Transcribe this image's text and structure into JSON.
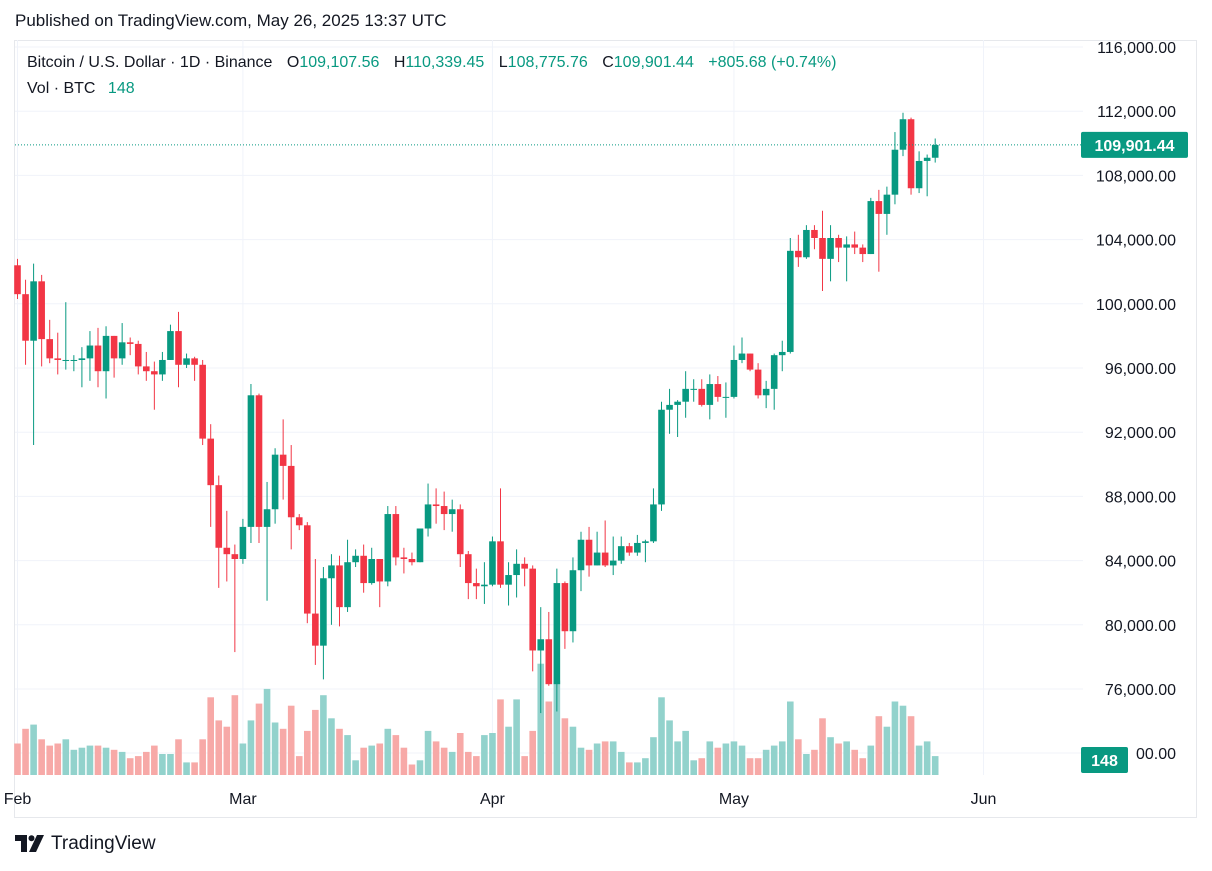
{
  "header": {
    "published": "Published on TradingView.com, May 26, 2025 13:37 UTC"
  },
  "legend": {
    "symbol": "Bitcoin / U.S. Dollar · 1D · Binance",
    "o_label": "O",
    "o_value": "109,107.56",
    "h_label": "H",
    "h_value": "110,339.45",
    "l_label": "L",
    "l_value": "108,775.76",
    "c_label": "C",
    "c_value": "109,901.44",
    "change": "+805.68 (+0.74%)",
    "vol_label": "Vol · BTC",
    "vol_value": "148"
  },
  "footer": {
    "brand": "TradingView"
  },
  "colors": {
    "up": "#089981",
    "down": "#F23645",
    "up_vol": "#92D2CC",
    "down_vol": "#F7A9A7",
    "grid": "#F0F3FA",
    "text": "#131722"
  },
  "chart_data": {
    "type": "candlestick",
    "ylim": [
      72000,
      116800
    ],
    "y_ticks": [
      "116,000.00",
      "112,000.00",
      "108,000.00",
      "104,000.00",
      "100,000.00",
      "96,000.00",
      "92,000.00",
      "88,000.00",
      "84,000.00",
      "80,000.00",
      "76,000.00"
    ],
    "y_tick_values": [
      116000,
      112000,
      108000,
      104000,
      100000,
      96000,
      92000,
      88000,
      84000,
      80000,
      76000
    ],
    "x_ticks": [
      "Feb",
      "Mar",
      "Apr",
      "May",
      "Jun"
    ],
    "x_tick_dates": [
      "2025-02-01",
      "2025-03-01",
      "2025-04-01",
      "2025-05-01",
      "2025-06-01"
    ],
    "last_price_label": "109,901.44",
    "last_price": 109901.44,
    "last_volume_label": "148",
    "volume_axis_partial_label": "00.00",
    "series": [
      {
        "d": "2025-02-01",
        "o": 102400,
        "h": 102800,
        "l": 100300,
        "c": 100600,
        "v": 1.5
      },
      {
        "d": "2025-02-02",
        "o": 100600,
        "h": 101500,
        "l": 96200,
        "c": 97700,
        "v": 2.2
      },
      {
        "d": "2025-02-03",
        "o": 97700,
        "h": 102500,
        "l": 91200,
        "c": 101400,
        "v": 2.4
      },
      {
        "d": "2025-02-04",
        "o": 101400,
        "h": 101800,
        "l": 96100,
        "c": 97800,
        "v": 1.7
      },
      {
        "d": "2025-02-05",
        "o": 97800,
        "h": 99000,
        "l": 96300,
        "c": 96600,
        "v": 1.4
      },
      {
        "d": "2025-02-06",
        "o": 96600,
        "h": 98200,
        "l": 95600,
        "c": 96500,
        "v": 1.5
      },
      {
        "d": "2025-02-07",
        "o": 96500,
        "h": 100100,
        "l": 95900,
        "c": 96500,
        "v": 1.7
      },
      {
        "d": "2025-02-08",
        "o": 96500,
        "h": 96800,
        "l": 95800,
        "c": 96500,
        "v": 1.2
      },
      {
        "d": "2025-02-09",
        "o": 96500,
        "h": 97300,
        "l": 94800,
        "c": 96600,
        "v": 1.3
      },
      {
        "d": "2025-02-10",
        "o": 96600,
        "h": 98300,
        "l": 95200,
        "c": 97400,
        "v": 1.4
      },
      {
        "d": "2025-02-11",
        "o": 97400,
        "h": 98500,
        "l": 94800,
        "c": 95800,
        "v": 1.4
      },
      {
        "d": "2025-02-12",
        "o": 95800,
        "h": 98600,
        "l": 94100,
        "c": 98000,
        "v": 1.3
      },
      {
        "d": "2025-02-13",
        "o": 98000,
        "h": 98000,
        "l": 95400,
        "c": 96600,
        "v": 1.2
      },
      {
        "d": "2025-02-14",
        "o": 96600,
        "h": 98800,
        "l": 96200,
        "c": 97600,
        "v": 1.1
      },
      {
        "d": "2025-02-15",
        "o": 97600,
        "h": 97900,
        "l": 96800,
        "c": 97500,
        "v": 0.8
      },
      {
        "d": "2025-02-16",
        "o": 97500,
        "h": 97700,
        "l": 95600,
        "c": 96100,
        "v": 0.9
      },
      {
        "d": "2025-02-17",
        "o": 96100,
        "h": 97000,
        "l": 95200,
        "c": 95800,
        "v": 1.1
      },
      {
        "d": "2025-02-18",
        "o": 95800,
        "h": 96400,
        "l": 93400,
        "c": 95600,
        "v": 1.4
      },
      {
        "d": "2025-02-19",
        "o": 95600,
        "h": 97000,
        "l": 95200,
        "c": 96500,
        "v": 1.0
      },
      {
        "d": "2025-02-20",
        "o": 96500,
        "h": 98700,
        "l": 96500,
        "c": 98300,
        "v": 1.0
      },
      {
        "d": "2025-02-21",
        "o": 98300,
        "h": 99500,
        "l": 94800,
        "c": 96200,
        "v": 1.7
      },
      {
        "d": "2025-02-22",
        "o": 96200,
        "h": 96900,
        "l": 96000,
        "c": 96600,
        "v": 0.6
      },
      {
        "d": "2025-02-23",
        "o": 96600,
        "h": 96700,
        "l": 95200,
        "c": 96200,
        "v": 0.6
      },
      {
        "d": "2025-02-24",
        "o": 96200,
        "h": 96500,
        "l": 91200,
        "c": 91600,
        "v": 1.7
      },
      {
        "d": "2025-02-25",
        "o": 91600,
        "h": 92500,
        "l": 86100,
        "c": 88700,
        "v": 3.7
      },
      {
        "d": "2025-02-26",
        "o": 88700,
        "h": 89300,
        "l": 82300,
        "c": 84800,
        "v": 2.6
      },
      {
        "d": "2025-02-27",
        "o": 84800,
        "h": 87100,
        "l": 82700,
        "c": 84400,
        "v": 2.3
      },
      {
        "d": "2025-02-28",
        "o": 84400,
        "h": 85000,
        "l": 78300,
        "c": 84100,
        "v": 3.8
      },
      {
        "d": "2025-03-01",
        "o": 84100,
        "h": 86600,
        "l": 83800,
        "c": 86100,
        "v": 1.5
      },
      {
        "d": "2025-03-02",
        "o": 86100,
        "h": 95000,
        "l": 85100,
        "c": 94300,
        "v": 2.6
      },
      {
        "d": "2025-03-03",
        "o": 94300,
        "h": 94400,
        "l": 85100,
        "c": 86100,
        "v": 3.4
      },
      {
        "d": "2025-03-04",
        "o": 86100,
        "h": 88900,
        "l": 81500,
        "c": 87200,
        "v": 4.1
      },
      {
        "d": "2025-03-05",
        "o": 87200,
        "h": 91000,
        "l": 86300,
        "c": 90600,
        "v": 2.5
      },
      {
        "d": "2025-03-06",
        "o": 90600,
        "h": 92800,
        "l": 87800,
        "c": 89900,
        "v": 2.2
      },
      {
        "d": "2025-03-07",
        "o": 89900,
        "h": 91200,
        "l": 84700,
        "c": 86700,
        "v": 3.3
      },
      {
        "d": "2025-03-08",
        "o": 86700,
        "h": 86900,
        "l": 85900,
        "c": 86200,
        "v": 0.9
      },
      {
        "d": "2025-03-09",
        "o": 86200,
        "h": 86400,
        "l": 80100,
        "c": 80700,
        "v": 2.1
      },
      {
        "d": "2025-03-10",
        "o": 80700,
        "h": 84100,
        "l": 77500,
        "c": 78700,
        "v": 3.1
      },
      {
        "d": "2025-03-11",
        "o": 78700,
        "h": 83600,
        "l": 76600,
        "c": 82900,
        "v": 3.8
      },
      {
        "d": "2025-03-12",
        "o": 82900,
        "h": 84400,
        "l": 80000,
        "c": 83700,
        "v": 2.7
      },
      {
        "d": "2025-03-13",
        "o": 83700,
        "h": 84300,
        "l": 79900,
        "c": 81100,
        "v": 2.2
      },
      {
        "d": "2025-03-14",
        "o": 81100,
        "h": 85300,
        "l": 80800,
        "c": 83900,
        "v": 1.9
      },
      {
        "d": "2025-03-15",
        "o": 83900,
        "h": 84700,
        "l": 83600,
        "c": 84300,
        "v": 0.7
      },
      {
        "d": "2025-03-16",
        "o": 84300,
        "h": 85000,
        "l": 82000,
        "c": 82600,
        "v": 1.3
      },
      {
        "d": "2025-03-17",
        "o": 82600,
        "h": 84800,
        "l": 82500,
        "c": 84100,
        "v": 1.4
      },
      {
        "d": "2025-03-18",
        "o": 84100,
        "h": 84100,
        "l": 81100,
        "c": 82700,
        "v": 1.5
      },
      {
        "d": "2025-03-19",
        "o": 82700,
        "h": 87400,
        "l": 82400,
        "c": 86900,
        "v": 2.2
      },
      {
        "d": "2025-03-20",
        "o": 86900,
        "h": 87400,
        "l": 83700,
        "c": 84200,
        "v": 1.9
      },
      {
        "d": "2025-03-21",
        "o": 84200,
        "h": 84800,
        "l": 83200,
        "c": 84100,
        "v": 1.3
      },
      {
        "d": "2025-03-22",
        "o": 84100,
        "h": 84500,
        "l": 83700,
        "c": 83900,
        "v": 0.5
      },
      {
        "d": "2025-03-23",
        "o": 83900,
        "h": 86000,
        "l": 83900,
        "c": 86000,
        "v": 0.7
      },
      {
        "d": "2025-03-24",
        "o": 86000,
        "h": 88800,
        "l": 85500,
        "c": 87500,
        "v": 2.1
      },
      {
        "d": "2025-03-25",
        "o": 87500,
        "h": 88500,
        "l": 86300,
        "c": 87400,
        "v": 1.6
      },
      {
        "d": "2025-03-26",
        "o": 87400,
        "h": 88300,
        "l": 85900,
        "c": 86900,
        "v": 1.3
      },
      {
        "d": "2025-03-27",
        "o": 86900,
        "h": 87800,
        "l": 85800,
        "c": 87200,
        "v": 1.1
      },
      {
        "d": "2025-03-28",
        "o": 87200,
        "h": 87500,
        "l": 83600,
        "c": 84400,
        "v": 2.0
      },
      {
        "d": "2025-03-29",
        "o": 84400,
        "h": 84600,
        "l": 81600,
        "c": 82600,
        "v": 1.1
      },
      {
        "d": "2025-03-30",
        "o": 82600,
        "h": 83500,
        "l": 81600,
        "c": 82400,
        "v": 0.9
      },
      {
        "d": "2025-03-31",
        "o": 82400,
        "h": 83900,
        "l": 81300,
        "c": 82500,
        "v": 1.9
      },
      {
        "d": "2025-04-01",
        "o": 82500,
        "h": 85500,
        "l": 82400,
        "c": 85200,
        "v": 2.0
      },
      {
        "d": "2025-04-02",
        "o": 85200,
        "h": 88500,
        "l": 82300,
        "c": 82500,
        "v": 3.6
      },
      {
        "d": "2025-04-03",
        "o": 82500,
        "h": 83900,
        "l": 81200,
        "c": 83100,
        "v": 2.3
      },
      {
        "d": "2025-04-04",
        "o": 83100,
        "h": 84700,
        "l": 81700,
        "c": 83800,
        "v": 3.6
      },
      {
        "d": "2025-04-05",
        "o": 83800,
        "h": 84200,
        "l": 82400,
        "c": 83500,
        "v": 0.9
      },
      {
        "d": "2025-04-06",
        "o": 83500,
        "h": 83700,
        "l": 77100,
        "c": 78400,
        "v": 2.1
      },
      {
        "d": "2025-04-07",
        "o": 78400,
        "h": 81100,
        "l": 74500,
        "c": 79100,
        "v": 5.3
      },
      {
        "d": "2025-04-08",
        "o": 79100,
        "h": 80800,
        "l": 76200,
        "c": 76300,
        "v": 3.5
      },
      {
        "d": "2025-04-09",
        "o": 76300,
        "h": 83500,
        "l": 74600,
        "c": 82600,
        "v": 4.5
      },
      {
        "d": "2025-04-10",
        "o": 82600,
        "h": 82700,
        "l": 78500,
        "c": 79600,
        "v": 2.7
      },
      {
        "d": "2025-04-11",
        "o": 79600,
        "h": 84200,
        "l": 78900,
        "c": 83400,
        "v": 2.3
      },
      {
        "d": "2025-04-12",
        "o": 83400,
        "h": 85800,
        "l": 82100,
        "c": 85300,
        "v": 1.3
      },
      {
        "d": "2025-04-13",
        "o": 85300,
        "h": 86100,
        "l": 83000,
        "c": 83700,
        "v": 1.2
      },
      {
        "d": "2025-04-14",
        "o": 83700,
        "h": 85800,
        "l": 83700,
        "c": 84500,
        "v": 1.5
      },
      {
        "d": "2025-04-15",
        "o": 84500,
        "h": 86500,
        "l": 83600,
        "c": 83700,
        "v": 1.6
      },
      {
        "d": "2025-04-16",
        "o": 83700,
        "h": 85500,
        "l": 83100,
        "c": 84000,
        "v": 1.6
      },
      {
        "d": "2025-04-17",
        "o": 84000,
        "h": 85500,
        "l": 83800,
        "c": 84900,
        "v": 1.1
      },
      {
        "d": "2025-04-18",
        "o": 84900,
        "h": 85100,
        "l": 84300,
        "c": 84500,
        "v": 0.6
      },
      {
        "d": "2025-04-19",
        "o": 84500,
        "h": 85600,
        "l": 84300,
        "c": 85100,
        "v": 0.6
      },
      {
        "d": "2025-04-20",
        "o": 85100,
        "h": 85300,
        "l": 83900,
        "c": 85200,
        "v": 0.8
      },
      {
        "d": "2025-04-21",
        "o": 85200,
        "h": 88500,
        "l": 85100,
        "c": 87500,
        "v": 1.8
      },
      {
        "d": "2025-04-22",
        "o": 87500,
        "h": 93900,
        "l": 87100,
        "c": 93400,
        "v": 3.7
      },
      {
        "d": "2025-04-23",
        "o": 93400,
        "h": 94700,
        "l": 91900,
        "c": 93700,
        "v": 2.6
      },
      {
        "d": "2025-04-24",
        "o": 93700,
        "h": 94000,
        "l": 91700,
        "c": 93900,
        "v": 1.6
      },
      {
        "d": "2025-04-25",
        "o": 93900,
        "h": 95800,
        "l": 92900,
        "c": 94700,
        "v": 2.1
      },
      {
        "d": "2025-04-26",
        "o": 94700,
        "h": 95300,
        "l": 93900,
        "c": 94700,
        "v": 0.7
      },
      {
        "d": "2025-04-27",
        "o": 94700,
        "h": 95300,
        "l": 93600,
        "c": 93700,
        "v": 0.8
      },
      {
        "d": "2025-04-28",
        "o": 93700,
        "h": 95600,
        "l": 92800,
        "c": 95000,
        "v": 1.6
      },
      {
        "d": "2025-04-29",
        "o": 95000,
        "h": 95500,
        "l": 93900,
        "c": 94200,
        "v": 1.3
      },
      {
        "d": "2025-04-30",
        "o": 94200,
        "h": 95100,
        "l": 92900,
        "c": 94200,
        "v": 1.5
      },
      {
        "d": "2025-05-01",
        "o": 94200,
        "h": 97400,
        "l": 94100,
        "c": 96500,
        "v": 1.6
      },
      {
        "d": "2025-05-02",
        "o": 96500,
        "h": 97900,
        "l": 96300,
        "c": 96900,
        "v": 1.4
      },
      {
        "d": "2025-05-03",
        "o": 96900,
        "h": 96900,
        "l": 95800,
        "c": 95900,
        "v": 0.8
      },
      {
        "d": "2025-05-04",
        "o": 95900,
        "h": 96300,
        "l": 94100,
        "c": 94300,
        "v": 0.8
      },
      {
        "d": "2025-05-05",
        "o": 94300,
        "h": 95200,
        "l": 93500,
        "c": 94700,
        "v": 1.2
      },
      {
        "d": "2025-05-06",
        "o": 94700,
        "h": 96900,
        "l": 93400,
        "c": 96800,
        "v": 1.4
      },
      {
        "d": "2025-05-07",
        "o": 96800,
        "h": 97700,
        "l": 95800,
        "c": 97000,
        "v": 1.6
      },
      {
        "d": "2025-05-08",
        "o": 97000,
        "h": 104100,
        "l": 96900,
        "c": 103300,
        "v": 3.5
      },
      {
        "d": "2025-05-09",
        "o": 103300,
        "h": 104300,
        "l": 102300,
        "c": 102900,
        "v": 1.7
      },
      {
        "d": "2025-05-10",
        "o": 102900,
        "h": 104900,
        "l": 102800,
        "c": 104600,
        "v": 1.0
      },
      {
        "d": "2025-05-11",
        "o": 104600,
        "h": 104900,
        "l": 103400,
        "c": 104100,
        "v": 1.2
      },
      {
        "d": "2025-05-12",
        "o": 104100,
        "h": 105800,
        "l": 100800,
        "c": 102800,
        "v": 2.7
      },
      {
        "d": "2025-05-13",
        "o": 102800,
        "h": 104900,
        "l": 101400,
        "c": 104100,
        "v": 1.8
      },
      {
        "d": "2025-05-14",
        "o": 104100,
        "h": 104300,
        "l": 102600,
        "c": 103500,
        "v": 1.5
      },
      {
        "d": "2025-05-15",
        "o": 103500,
        "h": 104200,
        "l": 101400,
        "c": 103700,
        "v": 1.6
      },
      {
        "d": "2025-05-16",
        "o": 103700,
        "h": 104500,
        "l": 103100,
        "c": 103500,
        "v": 1.2
      },
      {
        "d": "2025-05-17",
        "o": 103500,
        "h": 103700,
        "l": 102600,
        "c": 103100,
        "v": 0.8
      },
      {
        "d": "2025-05-18",
        "o": 103100,
        "h": 106600,
        "l": 103100,
        "c": 106400,
        "v": 1.4
      },
      {
        "d": "2025-05-19",
        "o": 106400,
        "h": 107100,
        "l": 102000,
        "c": 105600,
        "v": 2.8
      },
      {
        "d": "2025-05-20",
        "o": 105600,
        "h": 107300,
        "l": 104300,
        "c": 106800,
        "v": 2.3
      },
      {
        "d": "2025-05-21",
        "o": 106800,
        "h": 110700,
        "l": 106200,
        "c": 109600,
        "v": 3.5
      },
      {
        "d": "2025-05-22",
        "o": 109600,
        "h": 111900,
        "l": 109200,
        "c": 111500,
        "v": 3.3
      },
      {
        "d": "2025-05-23",
        "o": 111500,
        "h": 111600,
        "l": 106800,
        "c": 107200,
        "v": 2.8
      },
      {
        "d": "2025-05-24",
        "o": 107200,
        "h": 109500,
        "l": 106900,
        "c": 108900,
        "v": 1.4
      },
      {
        "d": "2025-05-25",
        "o": 108900,
        "h": 109300,
        "l": 106700,
        "c": 109100,
        "v": 1.6
      },
      {
        "d": "2025-05-26",
        "o": 109100,
        "h": 110300,
        "l": 108800,
        "c": 109900,
        "v": 0.9
      }
    ]
  }
}
